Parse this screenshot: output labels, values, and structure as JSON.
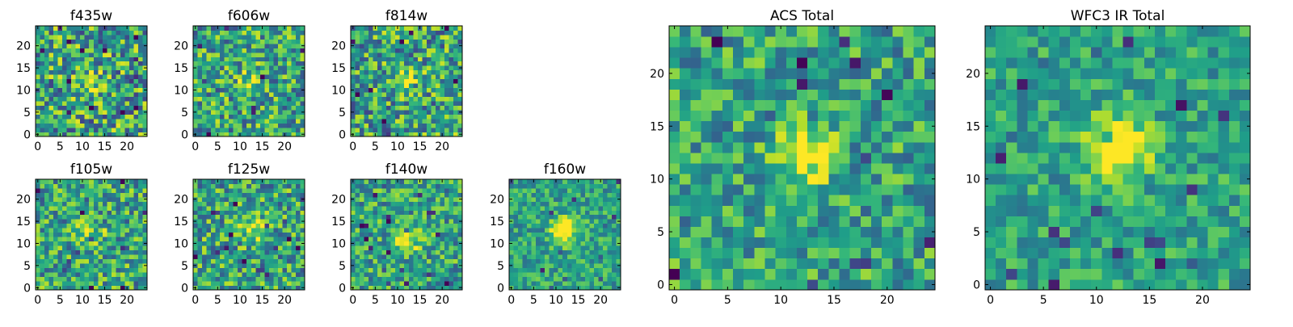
{
  "colormap": "viridis",
  "chart_data": [
    {
      "type": "heatmap",
      "title": "f435w",
      "ticks": {
        "x": [
          "0",
          "5",
          "10",
          "15",
          "20"
        ],
        "y": [
          "0",
          "5",
          "10",
          "15",
          "20"
        ]
      },
      "xlim": [
        0,
        24
      ],
      "ylim": [
        0,
        24
      ],
      "grid": "off",
      "peak": [
        12,
        12
      ],
      "peak_strength": 0.18,
      "noise": 0.42
    },
    {
      "type": "heatmap",
      "title": "f606w",
      "ticks": {
        "x": [
          "0",
          "5",
          "10",
          "15",
          "20"
        ],
        "y": [
          "0",
          "5",
          "10",
          "15",
          "20"
        ]
      },
      "xlim": [
        0,
        24
      ],
      "ylim": [
        0,
        24
      ],
      "grid": "off",
      "peak": [
        12,
        12
      ],
      "peak_strength": 0.3,
      "noise": 0.38
    },
    {
      "type": "heatmap",
      "title": "f814w",
      "ticks": {
        "x": [
          "0",
          "5",
          "10",
          "15",
          "20"
        ],
        "y": [
          "0",
          "5",
          "10",
          "15",
          "20"
        ]
      },
      "xlim": [
        0,
        24
      ],
      "ylim": [
        0,
        24
      ],
      "grid": "off",
      "peak": [
        12,
        12
      ],
      "peak_strength": 0.32,
      "noise": 0.4
    },
    {
      "type": "heatmap",
      "title": "f105w",
      "ticks": {
        "x": [
          "0",
          "5",
          "10",
          "15",
          "20"
        ],
        "y": [
          "0",
          "5",
          "10",
          "15",
          "20"
        ]
      },
      "xlim": [
        0,
        24
      ],
      "ylim": [
        0,
        24
      ],
      "grid": "off",
      "peak": [
        12,
        12
      ],
      "peak_strength": 0.3,
      "noise": 0.36
    },
    {
      "type": "heatmap",
      "title": "f125w",
      "ticks": {
        "x": [
          "0",
          "5",
          "10",
          "15",
          "20"
        ],
        "y": [
          "0",
          "5",
          "10",
          "15",
          "20"
        ]
      },
      "xlim": [
        0,
        24
      ],
      "ylim": [
        0,
        24
      ],
      "grid": "off",
      "peak": [
        13,
        13
      ],
      "peak_strength": 0.34,
      "noise": 0.36
    },
    {
      "type": "heatmap",
      "title": "f140w",
      "ticks": {
        "x": [
          "0",
          "5",
          "10",
          "15",
          "20"
        ],
        "y": [
          "0",
          "5",
          "10",
          "15",
          "20"
        ]
      },
      "xlim": [
        0,
        24
      ],
      "ylim": [
        0,
        24
      ],
      "grid": "off",
      "peak": [
        12,
        11
      ],
      "peak_strength": 0.42,
      "noise": 0.32
    },
    {
      "type": "heatmap",
      "title": "f160w",
      "ticks": {
        "x": [
          "0",
          "5",
          "10",
          "15",
          "20"
        ],
        "y": [
          "0",
          "5",
          "10",
          "15",
          "20"
        ]
      },
      "xlim": [
        0,
        24
      ],
      "ylim": [
        0,
        24
      ],
      "grid": "off",
      "peak": [
        12,
        13
      ],
      "peak_strength": 0.6,
      "noise": 0.24
    },
    {
      "type": "heatmap",
      "title": "ACS Total",
      "ticks": {
        "x": [
          "0",
          "5",
          "10",
          "15",
          "20"
        ],
        "y": [
          "0",
          "5",
          "10",
          "15",
          "20"
        ]
      },
      "xlim": [
        0,
        24
      ],
      "ylim": [
        0,
        24
      ],
      "grid": "off",
      "peak": [
        12,
        12
      ],
      "peak_strength": 0.45,
      "noise": 0.3
    },
    {
      "type": "heatmap",
      "title": "WFC3 IR Total",
      "ticks": {
        "x": [
          "0",
          "5",
          "10",
          "15",
          "20"
        ],
        "y": [
          "0",
          "5",
          "10",
          "15",
          "20"
        ]
      },
      "xlim": [
        0,
        24
      ],
      "ylim": [
        0,
        24
      ],
      "grid": "off",
      "peak": [
        12,
        13
      ],
      "peak_strength": 0.65,
      "noise": 0.22
    }
  ]
}
